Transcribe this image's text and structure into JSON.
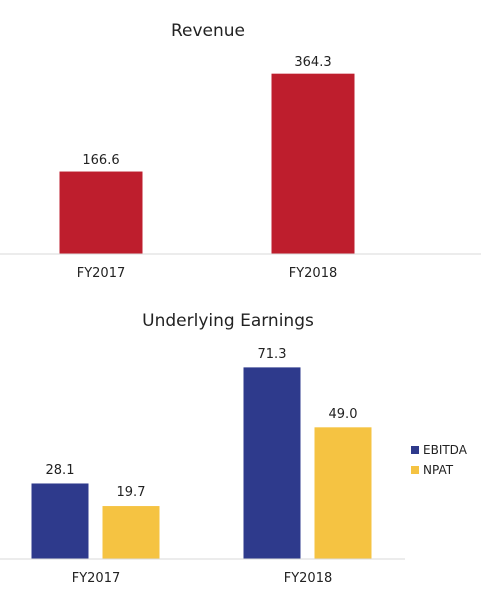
{
  "chart_data": [
    {
      "type": "bar",
      "title": "Revenue",
      "categories": [
        "FY2017",
        "FY2018"
      ],
      "series": [
        {
          "values": [
            166.6,
            364.3
          ],
          "color": "#be1e2d"
        }
      ],
      "data_labels": [
        "166.6",
        "364.3"
      ],
      "ylim": [
        0,
        400
      ],
      "grid": false,
      "legend": "none"
    },
    {
      "type": "bar",
      "title": "Underlying Earnings",
      "categories": [
        "FY2017",
        "FY2018"
      ],
      "series": [
        {
          "name": "EBITDA",
          "values": [
            28.1,
            71.3
          ],
          "color": "#2e3a8c",
          "data_labels": [
            "28.1",
            "71.3"
          ]
        },
        {
          "name": "NPAT",
          "values": [
            19.7,
            49.0
          ],
          "color": "#f5c342",
          "data_labels": [
            "19.7",
            "49.0"
          ]
        }
      ],
      "ylim": [
        0,
        80
      ],
      "grid": false,
      "legend": "right"
    }
  ]
}
